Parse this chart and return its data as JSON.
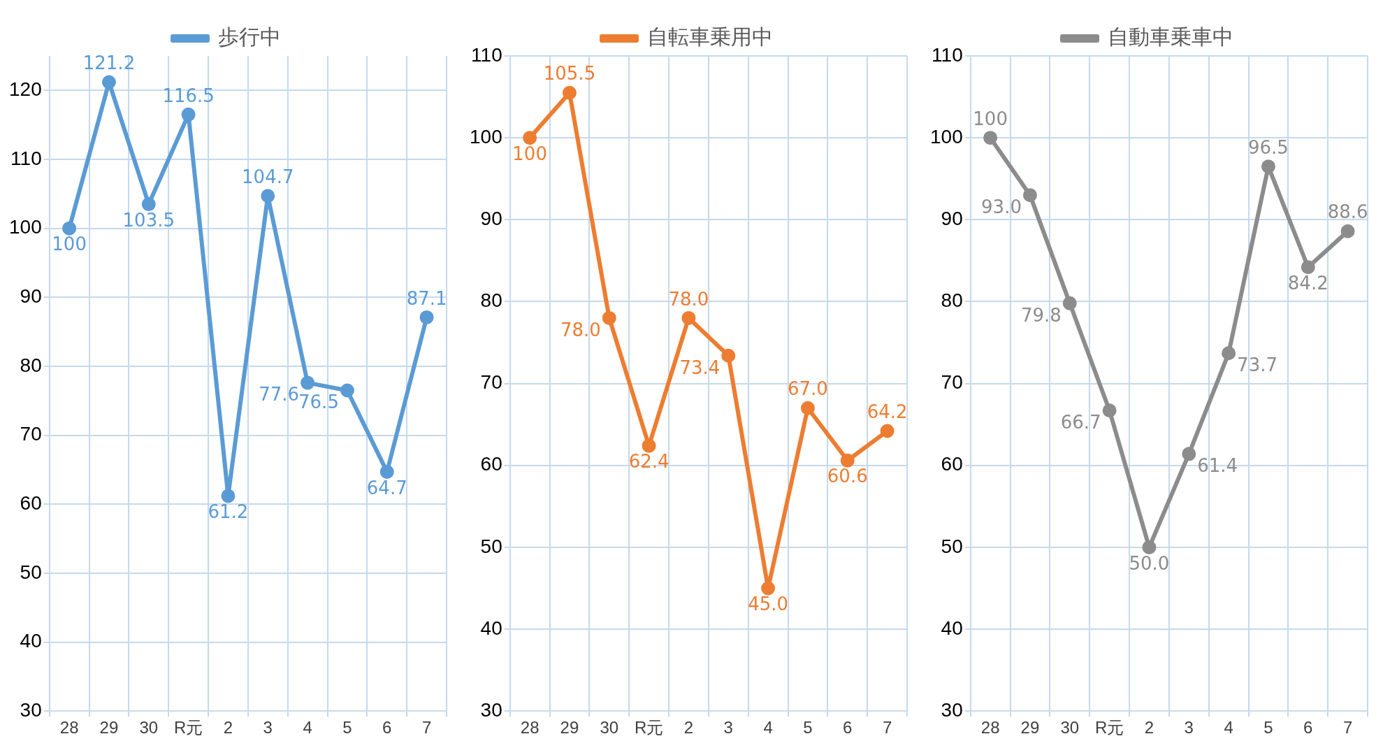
{
  "chart_data": [
    {
      "type": "line",
      "categories": [
        "28",
        "29",
        "30",
        "R元",
        "2",
        "3",
        "4",
        "5",
        "6",
        "7"
      ],
      "series": [
        {
          "name": "歩行中",
          "color": "#5b9bd5",
          "values": [
            100,
            121.2,
            103.5,
            116.5,
            61.2,
            104.7,
            77.6,
            76.5,
            64.7,
            87.1
          ],
          "value_labels": [
            "100",
            "121.2",
            "103.5",
            "116.5",
            "61.2",
            "104.7",
            "77.6",
            "76.5",
            "64.7",
            "87.1"
          ]
        }
      ],
      "ylim": [
        30,
        125
      ],
      "yticks": [
        30,
        40,
        50,
        60,
        70,
        80,
        90,
        100,
        110,
        120
      ],
      "grid": true,
      "legend": "top",
      "marker": "circle"
    },
    {
      "type": "line",
      "categories": [
        "28",
        "29",
        "30",
        "R元",
        "2",
        "3",
        "4",
        "5",
        "6",
        "7"
      ],
      "series": [
        {
          "name": "自転車乗用中",
          "color": "#ed7d31",
          "values": [
            100,
            105.5,
            78.0,
            62.4,
            78.0,
            73.4,
            45.0,
            67.0,
            60.6,
            64.2
          ],
          "value_labels": [
            "100",
            "105.5",
            "78.0",
            "62.4",
            "78.0",
            "73.4",
            "45.0",
            "67.0",
            "60.6",
            "64.2"
          ]
        }
      ],
      "ylim": [
        30,
        110
      ],
      "yticks": [
        30,
        40,
        50,
        60,
        70,
        80,
        90,
        100,
        110
      ],
      "grid": true,
      "legend": "top",
      "marker": "circle"
    },
    {
      "type": "line",
      "categories": [
        "28",
        "29",
        "30",
        "R元",
        "2",
        "3",
        "4",
        "5",
        "6",
        "7"
      ],
      "series": [
        {
          "name": "自動車乗車中",
          "color": "#8c8c8c",
          "values": [
            100,
            93.0,
            79.8,
            66.7,
            50.0,
            61.4,
            73.7,
            96.5,
            84.2,
            88.6
          ],
          "value_labels": [
            "100",
            "93.0",
            "79.8",
            "66.7",
            "50.0",
            "61.4",
            "73.7",
            "96.5",
            "84.2",
            "88.6"
          ]
        }
      ],
      "ylim": [
        30,
        110
      ],
      "yticks": [
        30,
        40,
        50,
        60,
        70,
        80,
        90,
        100,
        110
      ],
      "grid": true,
      "legend": "top",
      "marker": "circle"
    }
  ]
}
